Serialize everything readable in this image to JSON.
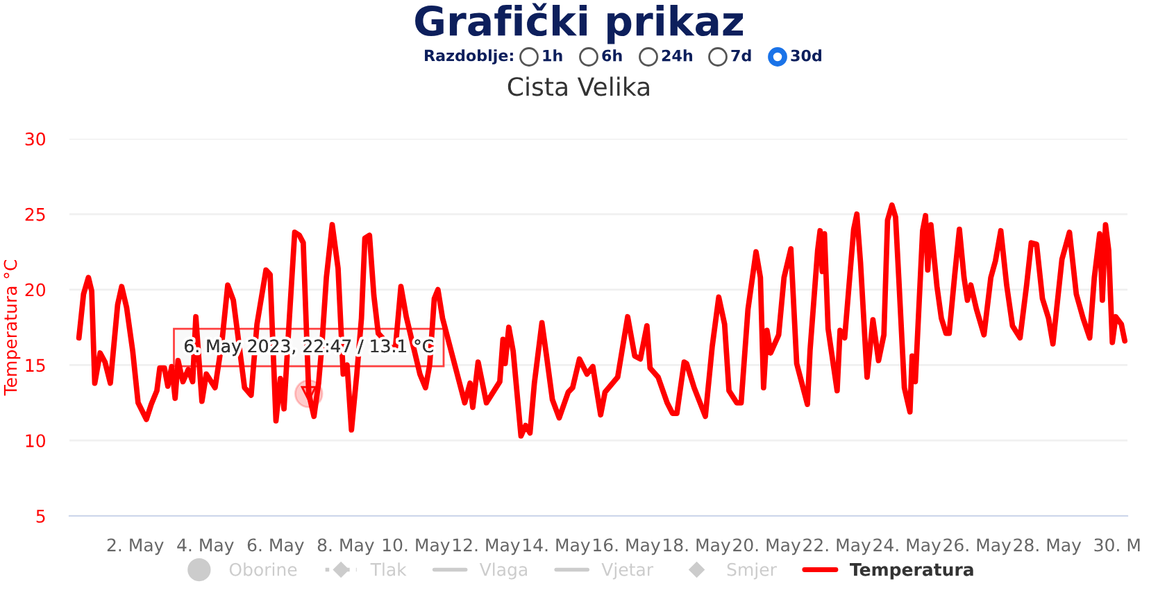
{
  "chart_data": {
    "type": "line",
    "title": "Grafički prikaz",
    "subtitle": "Cista Velika",
    "ylabel": "Temperatura °C",
    "annotations": [
      "Razdoblje:",
      "1h",
      "6h",
      "24h",
      "7d",
      "30d",
      {
        "text": "6. May 2023, 22:47 / 13.1 °C",
        "x": "2023-05-06T22:47",
        "y": 13.1
      }
    ],
    "xlim": [
      "2023-04-30T03:00",
      "2023-05-30T07:00"
    ],
    "xticks": [
      {
        "value": "2023-05-02",
        "label": "2. May"
      },
      {
        "value": "2023-05-04",
        "label": "4. May"
      },
      {
        "value": "2023-05-06",
        "label": "6. May"
      },
      {
        "value": "2023-05-08",
        "label": "8. May"
      },
      {
        "value": "2023-05-10",
        "label": "10. May"
      },
      {
        "value": "2023-05-12",
        "label": "12. May"
      },
      {
        "value": "2023-05-14",
        "label": "14. May"
      },
      {
        "value": "2023-05-16",
        "label": "16. May"
      },
      {
        "value": "2023-05-18",
        "label": "18. May"
      },
      {
        "value": "2023-05-20",
        "label": "20. May"
      },
      {
        "value": "2023-05-22",
        "label": "22. May"
      },
      {
        "value": "2023-05-24",
        "label": "24. May"
      },
      {
        "value": "2023-05-26",
        "label": "26. May"
      },
      {
        "value": "2023-05-28",
        "label": "28. May"
      },
      {
        "value": "2023-05-30",
        "label": "30. M"
      }
    ],
    "ylim": [
      5,
      30
    ],
    "yticks": [
      5,
      10,
      15,
      20,
      25,
      30
    ],
    "grid": "y",
    "legend": "bottom",
    "marker": "none",
    "line_style": "solid",
    "series": [
      {
        "name": "Oborine",
        "color": "#cccccc",
        "type": "bar"
      },
      {
        "name": "Tlak",
        "color": "#cccccc",
        "type": "line",
        "marker": "diamond",
        "line_style": "dotted"
      },
      {
        "name": "Vlaga",
        "color": "#cccccc",
        "type": "line"
      },
      {
        "name": "Vjetar",
        "color": "#cccccc",
        "type": "line"
      },
      {
        "name": "Smjer",
        "color": "#cccccc",
        "type": "scatter",
        "marker": "diamond"
      },
      {
        "name": "Temperatura",
        "color": "#ff0000",
        "x": [
          "2023-04-30T09:30",
          "2023-04-30T12:40",
          "2023-04-30T16:00",
          "2023-04-30T18:15",
          "2023-04-30T20:20",
          "2023-05-01T00:00",
          "2023-05-01T03:20",
          "2023-05-01T07:00",
          "2023-05-01T12:00",
          "2023-05-01T14:45",
          "2023-05-01T18:10",
          "2023-05-01T22:20",
          "2023-05-02T02:00",
          "2023-05-02T07:40",
          "2023-05-02T11:00",
          "2023-05-02T14:50",
          "2023-05-02T16:50",
          "2023-05-02T20:00",
          "2023-05-02T22:20",
          "2023-05-03T01:00",
          "2023-05-03T03:20",
          "2023-05-03T05:20",
          "2023-05-03T08:40",
          "2023-05-03T12:20",
          "2023-05-03T15:20",
          "2023-05-03T17:30",
          "2023-05-03T21:40",
          "2023-05-04T00:40",
          "2023-05-04T06:40",
          "2023-05-04T11:20",
          "2023-05-04T15:20",
          "2023-05-04T19:10",
          "2023-05-04T23:40",
          "2023-05-05T02:50",
          "2023-05-05T07:20",
          "2023-05-05T11:20",
          "2023-05-05T17:30",
          "2023-05-05T20:20",
          "2023-05-06T00:20",
          "2023-05-06T03:20",
          "2023-05-06T05:50",
          "2023-05-06T09:30",
          "2023-05-06T13:10",
          "2023-05-06T16:20",
          "2023-05-06T19:00",
          "2023-05-06T22:47",
          "2023-05-07T02:20",
          "2023-05-07T05:30",
          "2023-05-07T07:40",
          "2023-05-07T10:50",
          "2023-05-07T14:50",
          "2023-05-07T18:50",
          "2023-05-07T22:20",
          "2023-05-08T01:00",
          "2023-05-08T04:00",
          "2023-05-08T07:40",
          "2023-05-08T10:50",
          "2023-05-08T13:10",
          "2023-05-08T16:20",
          "2023-05-08T19:20",
          "2023-05-08T22:20",
          "2023-05-09T09:50",
          "2023-05-09T13:50",
          "2023-05-09T17:30",
          "2023-05-10T02:50",
          "2023-05-10T06:40",
          "2023-05-10T09:30",
          "2023-05-10T12:40",
          "2023-05-10T15:10",
          "2023-05-10T18:20",
          "2023-05-11T09:30",
          "2023-05-11T13:10",
          "2023-05-11T15:00",
          "2023-05-11T18:40",
          "2023-05-12T00:20",
          "2023-05-12T09:30",
          "2023-05-12T11:40",
          "2023-05-12T13:10",
          "2023-05-12T15:40",
          "2023-05-12T18:40",
          "2023-05-13T00:00",
          "2023-05-13T03:10",
          "2023-05-13T06:10",
          "2023-05-13T09:10",
          "2023-05-13T14:20",
          "2023-05-13T17:30",
          "2023-05-13T21:30",
          "2023-05-14T02:10",
          "2023-05-14T08:20",
          "2023-05-14T11:20",
          "2023-05-14T16:00",
          "2023-05-14T21:10",
          "2023-05-15T01:10",
          "2023-05-15T06:30",
          "2023-05-15T09:30",
          "2023-05-15T18:10",
          "2023-05-16T01:00",
          "2023-05-16T05:50",
          "2023-05-16T09:40",
          "2023-05-16T14:10",
          "2023-05-16T16:20",
          "2023-05-16T21:50",
          "2023-05-17T04:00",
          "2023-05-17T07:40",
          "2023-05-17T10:40",
          "2023-05-17T15:40",
          "2023-05-17T17:20",
          "2023-05-17T22:30",
          "2023-05-18T06:10",
          "2023-05-18T10:50",
          "2023-05-18T15:20",
          "2023-05-18T19:20",
          "2023-05-18T22:20",
          "2023-05-19T03:40",
          "2023-05-19T06:40",
          "2023-05-19T11:20",
          "2023-05-19T16:50",
          "2023-05-19T19:50",
          "2023-05-19T22:00",
          "2023-05-20T00:20",
          "2023-05-20T02:50",
          "2023-05-20T08:20",
          "2023-05-20T12:00",
          "2023-05-20T16:40",
          "2023-05-20T20:40",
          "2023-05-21T04:00",
          "2023-05-21T05:50",
          "2023-05-21T11:00",
          "2023-05-21T12:40",
          "2023-05-21T14:10",
          "2023-05-21T15:40",
          "2023-05-21T18:10",
          "2023-05-22T00:20",
          "2023-05-22T02:20",
          "2023-05-22T05:30",
          "2023-05-22T11:40",
          "2023-05-22T13:50",
          "2023-05-22T16:20",
          "2023-05-22T20:50",
          "2023-05-23T00:50",
          "2023-05-23T04:40",
          "2023-05-23T08:20",
          "2023-05-23T10:50",
          "2023-05-23T13:50",
          "2023-05-23T16:20",
          "2023-05-23T18:30",
          "2023-05-23T22:20",
          "2023-05-24T02:10",
          "2023-05-24T03:40",
          "2023-05-24T05:50",
          "2023-05-24T10:50",
          "2023-05-24T12:50",
          "2023-05-24T14:20",
          "2023-05-24T16:30",
          "2023-05-24T20:40",
          "2023-05-24T23:40",
          "2023-05-25T02:50",
          "2023-05-25T05:00",
          "2023-05-25T08:50",
          "2023-05-25T12:00",
          "2023-05-25T15:10",
          "2023-05-25T17:30",
          "2023-05-25T19:50",
          "2023-05-25T23:40",
          "2023-05-26T04:50",
          "2023-05-26T09:30",
          "2023-05-26T12:40",
          "2023-05-26T16:20",
          "2023-05-26T20:20",
          "2023-05-27T00:20",
          "2023-05-27T05:30",
          "2023-05-27T10:00",
          "2023-05-27T13:10",
          "2023-05-27T16:50",
          "2023-05-27T20:50",
          "2023-05-28T01:00",
          "2023-05-28T04:00",
          "2023-05-28T10:10",
          "2023-05-28T15:20",
          "2023-05-28T20:00",
          "2023-05-29T00:40",
          "2023-05-29T05:10",
          "2023-05-29T08:20",
          "2023-05-29T12:00",
          "2023-05-29T13:50",
          "2023-05-29T16:00",
          "2023-05-29T18:10",
          "2023-05-29T20:40",
          "2023-05-29T23:00",
          "2023-05-30T02:50",
          "2023-05-30T05:10"
        ],
        "values": [
          16.8,
          19.7,
          20.8,
          19.9,
          13.8,
          15.8,
          15.2,
          13.8,
          19.0,
          20.2,
          18.8,
          15.9,
          12.5,
          11.4,
          12.4,
          13.3,
          14.8,
          14.8,
          13.6,
          14.9,
          12.8,
          15.3,
          13.9,
          14.7,
          13.9,
          18.2,
          12.6,
          14.4,
          13.5,
          16.5,
          20.3,
          19.3,
          15.9,
          13.5,
          13.0,
          17.7,
          21.3,
          21.0,
          11.3,
          14.1,
          12.1,
          18.1,
          23.8,
          23.6,
          23.1,
          13.1,
          11.6,
          13.8,
          16.2,
          20.8,
          24.3,
          21.4,
          14.4,
          15.0,
          10.7,
          14.4,
          18.1,
          23.4,
          23.6,
          19.6,
          17.1,
          15.9,
          20.2,
          18.2,
          14.4,
          13.5,
          15.0,
          19.4,
          20.0,
          18.1,
          12.5,
          13.8,
          12.2,
          15.2,
          12.5,
          13.9,
          16.7,
          15.1,
          17.5,
          15.9,
          10.3,
          11.0,
          10.5,
          13.8,
          17.8,
          15.6,
          12.7,
          11.5,
          13.2,
          13.5,
          15.4,
          14.4,
          14.9,
          11.7,
          13.2,
          14.2,
          18.2,
          15.6,
          15.4,
          17.6,
          14.8,
          14.2,
          12.5,
          11.8,
          11.8,
          15.2,
          15.1,
          13.5,
          11.6,
          16.2,
          19.5,
          17.7,
          13.3,
          12.5,
          12.5,
          18.7,
          22.5,
          20.8,
          13.5,
          17.3,
          15.8,
          17.0,
          20.8,
          22.7,
          15.1,
          12.4,
          16.0,
          22.6,
          23.9,
          21.2,
          23.7,
          17.4,
          13.3,
          17.3,
          16.8,
          24.0,
          25.0,
          21.8,
          14.2,
          18.0,
          15.3,
          17.0,
          24.6,
          25.6,
          24.8,
          20.8,
          13.5,
          11.9,
          15.6,
          13.9,
          23.9,
          24.9,
          21.3,
          24.3,
          20.2,
          18.1,
          17.1,
          17.1,
          21.0,
          24.0,
          20.8,
          19.3,
          20.3,
          18.7,
          17.0,
          20.8,
          21.9,
          23.9,
          20.3,
          17.6,
          16.8,
          20.3,
          23.1,
          23.0,
          19.4,
          18.1,
          16.4,
          22.0,
          23.8,
          19.7,
          18.1,
          16.8,
          20.8,
          23.7,
          19.3,
          24.3,
          22.6,
          16.5,
          18.2,
          17.7,
          16.6
        ]
      }
    ]
  }
}
